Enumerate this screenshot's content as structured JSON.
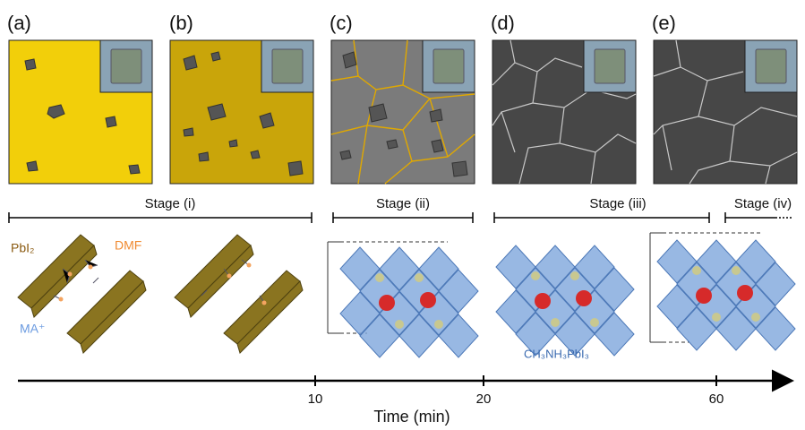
{
  "panels": [
    "(a)",
    "(b)",
    "(c)",
    "(d)",
    "(e)"
  ],
  "stages": [
    "Stage (i)",
    "Stage (ii)",
    "Stage (iii)",
    "Stage (iv)"
  ],
  "labels": {
    "pbi2": "PbI₂",
    "dmf": "DMF",
    "ma": "MA⁺",
    "product": "CH₃NH₃PbI₃"
  },
  "time_axis": {
    "label": "Time (min)",
    "ticks": [
      10,
      20,
      60
    ]
  }
}
